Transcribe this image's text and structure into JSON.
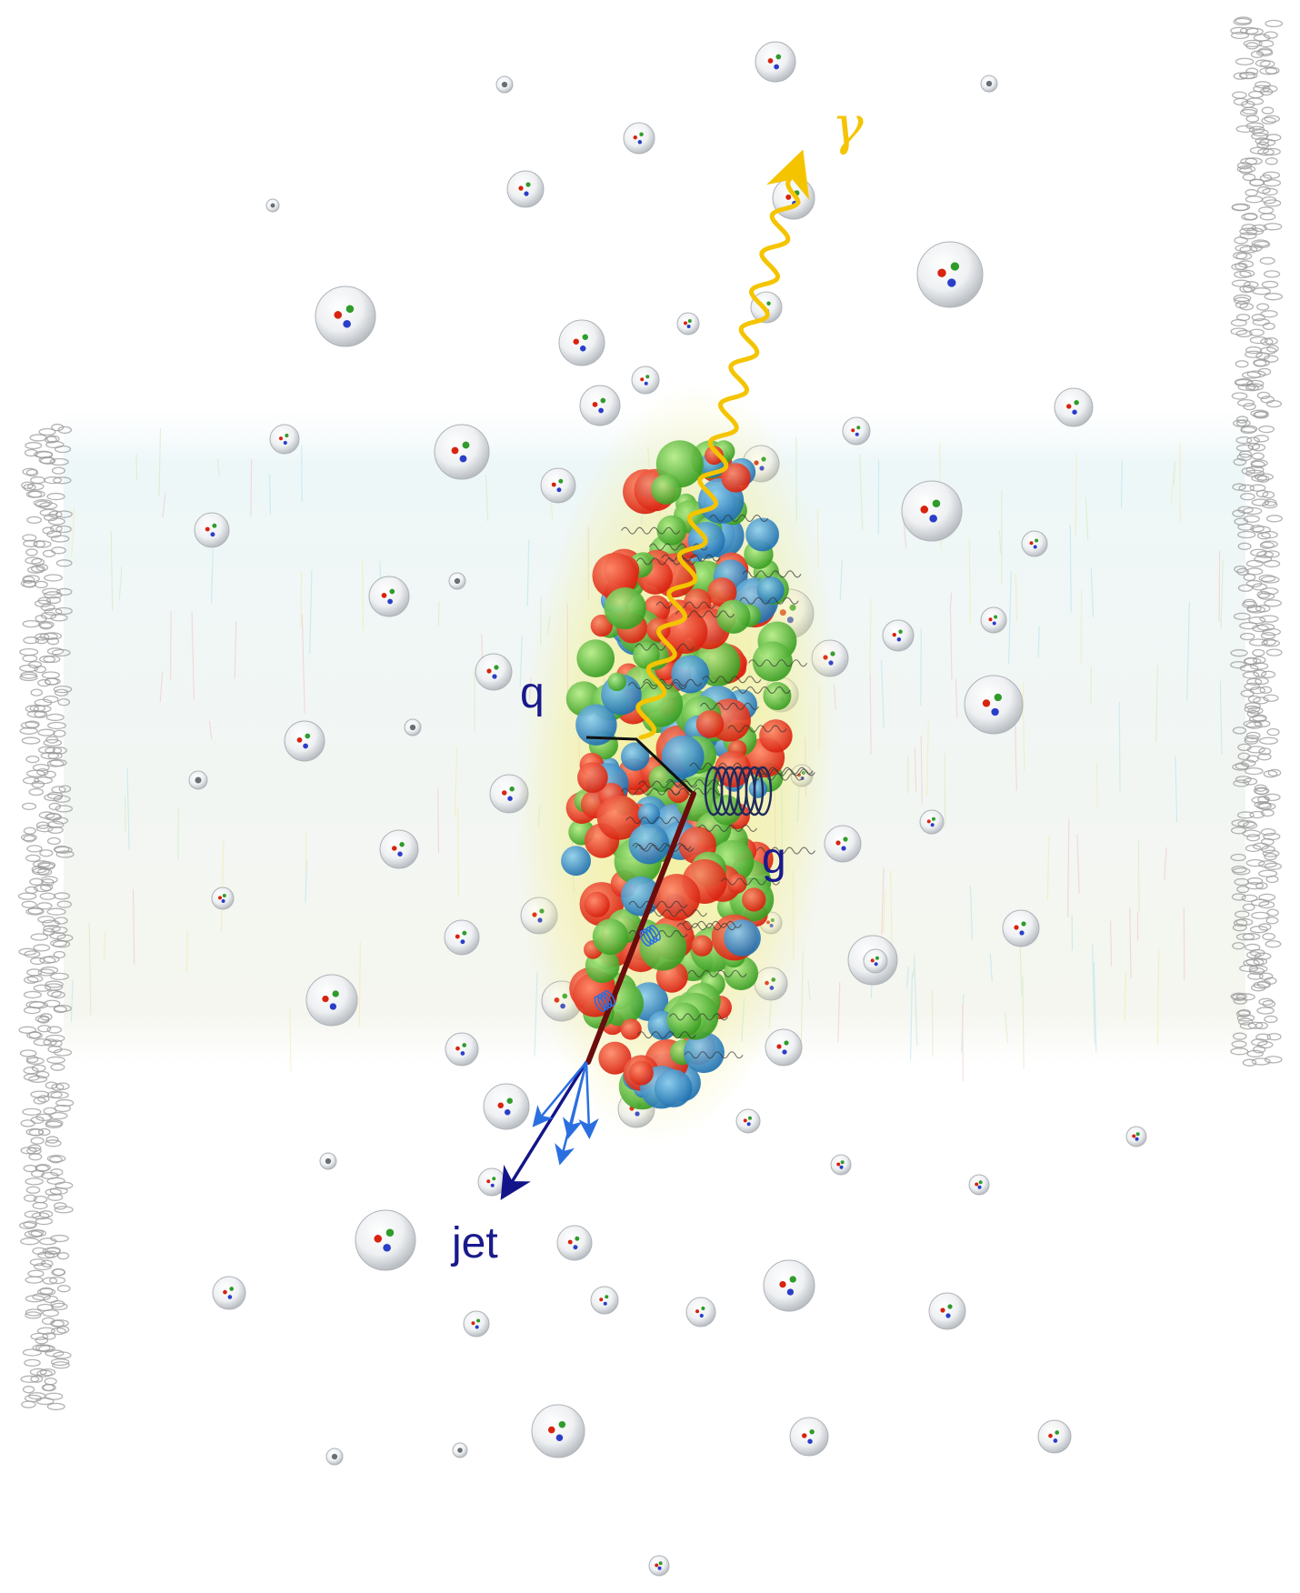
{
  "labels": {
    "photon": "γ",
    "quark": "q",
    "gluon": "g",
    "jet": "jet"
  },
  "colors": {
    "photon": "#f5c400",
    "label": "#1a1a8c",
    "quark_track": "#6b0d0d",
    "jet_main": "#14148a",
    "jet_fragment": "#2a6fe0",
    "gluon_coil": "#1f2a5c",
    "qgp_red": "#e8321e",
    "qgp_green": "#4fb82e",
    "qgp_blue": "#2f86c8",
    "qgp_glow": "#f3ee8a",
    "nucleon": "#dfe3e6",
    "nucleus_band": "#eef6f8",
    "detector_edge": "#9a9a9a"
  },
  "icons": {
    "photon": "wavy-arrow",
    "gluon": "coil-spring",
    "jet": "arrow-spray"
  }
}
